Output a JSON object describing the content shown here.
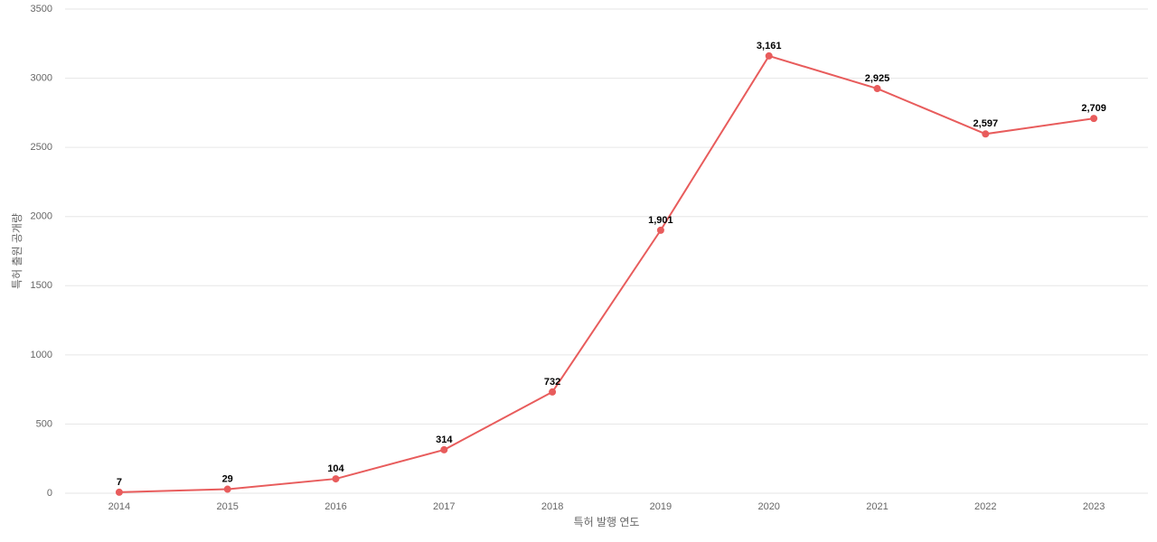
{
  "chart_data": {
    "type": "line",
    "x_label": "특허 발행 연도",
    "y_label": "특허 출원 공개량",
    "categories": [
      "2014",
      "2015",
      "2016",
      "2017",
      "2018",
      "2019",
      "2020",
      "2021",
      "2022",
      "2023"
    ],
    "values": [
      7,
      29,
      104,
      314,
      732,
      1901,
      3161,
      2925,
      2597,
      2709
    ],
    "value_labels": [
      "7",
      "29",
      "104",
      "314",
      "732",
      "1,901",
      "3,161",
      "2,925",
      "2,597",
      "2,709"
    ],
    "color": "#e85c5c",
    "ylim": [
      0,
      3500
    ],
    "yticks": [
      0,
      500,
      1000,
      1500,
      2000,
      2500,
      3000,
      3500
    ],
    "grid": true
  }
}
